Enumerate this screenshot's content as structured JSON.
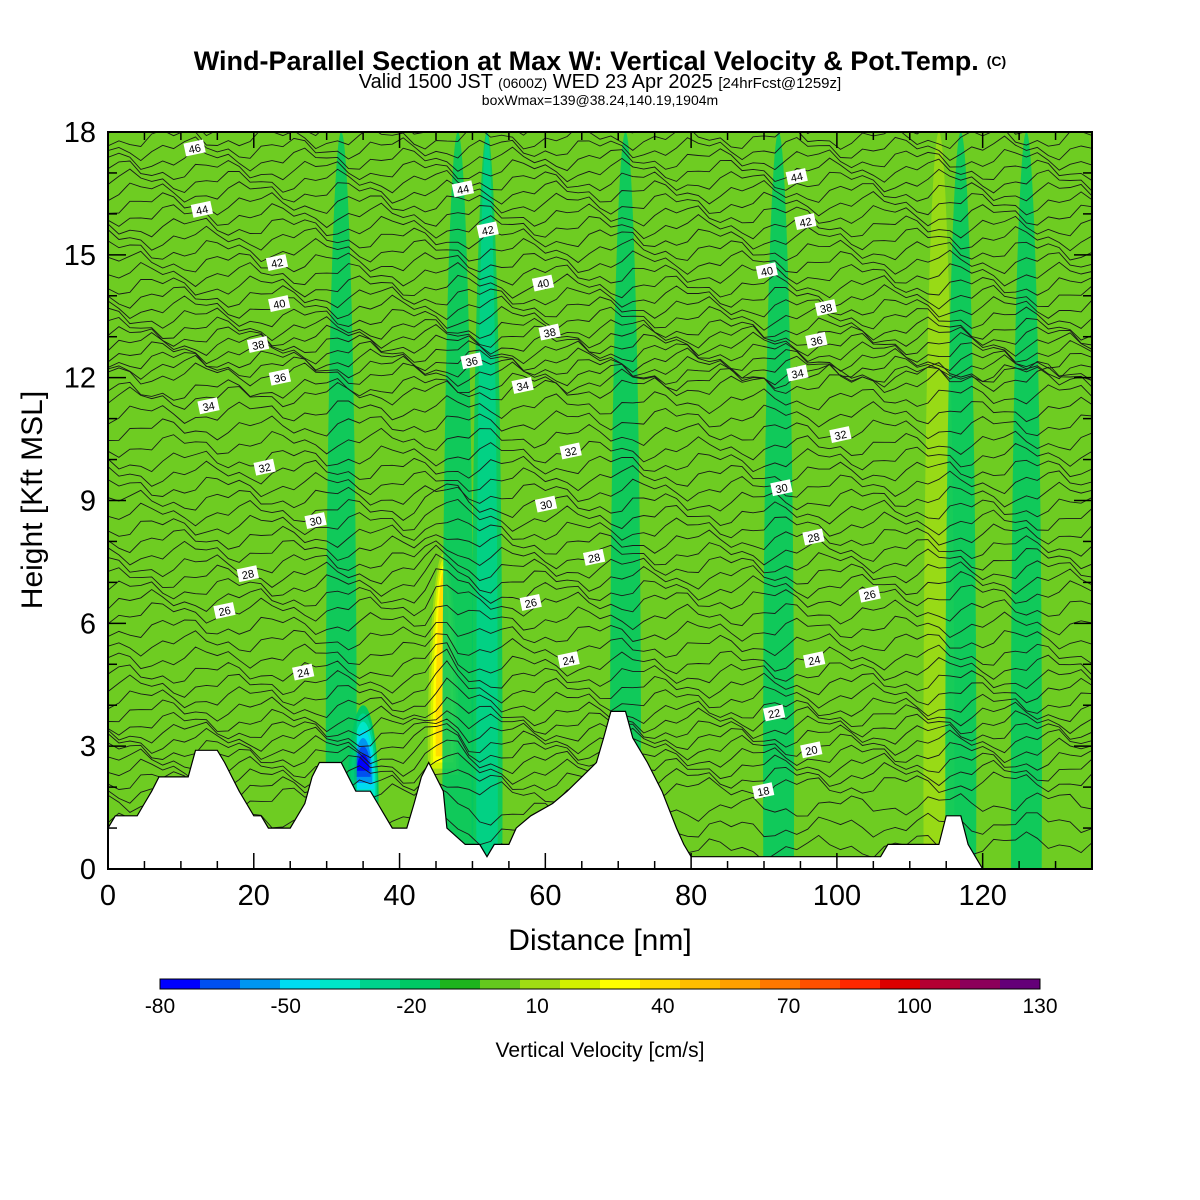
{
  "chart_data": {
    "type": "heatmap",
    "title": "Wind-Parallel Section at Max W: Vertical Velocity & Pot.Temp.",
    "title_mark": "(C)",
    "subtitle_pre": "Valid 1500 JST ",
    "subtitle_utc": "(0600Z)",
    "subtitle_date": " WED 23 Apr 2025 ",
    "subtitle_run": "[24hrFcst@1259z]",
    "subtitle2": "boxWmax=139@38.24,140.19,1904m",
    "xlabel": "Distance [nm]",
    "ylabel": "Height [Kft MSL]",
    "xlim": [
      0,
      135
    ],
    "ylim": [
      0,
      18
    ],
    "x_ticks": [
      "0",
      "20",
      "40",
      "60",
      "80",
      "100",
      "120"
    ],
    "y_ticks": [
      "0",
      "3",
      "6",
      "9",
      "12",
      "15",
      "18"
    ],
    "colorbar": {
      "label": "Vertical Velocity [cm/s]",
      "tick_labels": [
        "-80",
        "-50",
        "-20",
        "10",
        "40",
        "70",
        "100",
        "130"
      ],
      "colors": [
        "#0000ff",
        "#0050f0",
        "#0096f0",
        "#00dcf0",
        "#00e6c8",
        "#00d28c",
        "#00c864",
        "#1eb41e",
        "#64c81e",
        "#a0dc14",
        "#d2f000",
        "#ffff00",
        "#ffdc00",
        "#ffbe00",
        "#ffa000",
        "#ff7800",
        "#ff5000",
        "#ff2800",
        "#dc0000",
        "#b40032",
        "#8c005a",
        "#640078"
      ]
    },
    "updraft_columns": [
      {
        "x": 6,
        "w": 5
      },
      {
        "x": 14,
        "w": 4
      },
      {
        "x": 26,
        "w": 3
      },
      {
        "x": 41,
        "w": 6
      },
      {
        "x": 46,
        "w": 40
      },
      {
        "x": 50,
        "w": 5
      },
      {
        "x": 57,
        "w": 4
      },
      {
        "x": 66,
        "w": 5
      },
      {
        "x": 73,
        "w": 6
      },
      {
        "x": 86,
        "w": 5
      },
      {
        "x": 98,
        "w": 4
      },
      {
        "x": 105,
        "w": 5
      },
      {
        "x": 114,
        "w": 12
      },
      {
        "x": 123,
        "w": 6
      },
      {
        "x": 128,
        "w": 8
      },
      {
        "x": 133,
        "w": 4
      }
    ],
    "downdraft_columns": [
      {
        "x": 35,
        "w": -70
      },
      {
        "x": 52,
        "w": -22
      },
      {
        "x": 48,
        "w": -12
      },
      {
        "x": 71,
        "w": -15
      },
      {
        "x": 32,
        "w": -15
      },
      {
        "x": 92,
        "w": -10
      },
      {
        "x": 117,
        "w": -15
      },
      {
        "x": 126,
        "w": -12
      }
    ],
    "theta_contour_labels": [
      {
        "v": "46",
        "x": 11.9,
        "y": 17.6
      },
      {
        "v": "44",
        "x": 12.9,
        "y": 16.1
      },
      {
        "v": "44",
        "x": 48.7,
        "y": 16.6
      },
      {
        "v": "44",
        "x": 94.5,
        "y": 16.9
      },
      {
        "v": "42",
        "x": 23.2,
        "y": 14.8
      },
      {
        "v": "42",
        "x": 52.1,
        "y": 15.6
      },
      {
        "v": "42",
        "x": 95.7,
        "y": 15.8
      },
      {
        "v": "40",
        "x": 23.5,
        "y": 13.8
      },
      {
        "v": "40",
        "x": 59.7,
        "y": 14.3
      },
      {
        "v": "40",
        "x": 90.4,
        "y": 14.6
      },
      {
        "v": "38",
        "x": 20.6,
        "y": 12.8
      },
      {
        "v": "38",
        "x": 60.6,
        "y": 13.1
      },
      {
        "v": "38",
        "x": 98.5,
        "y": 13.7
      },
      {
        "v": "36",
        "x": 23.6,
        "y": 12.0
      },
      {
        "v": "36",
        "x": 49.9,
        "y": 12.4
      },
      {
        "v": "36",
        "x": 97.2,
        "y": 12.9
      },
      {
        "v": "34",
        "x": 13.8,
        "y": 11.3
      },
      {
        "v": "34",
        "x": 56.9,
        "y": 11.8
      },
      {
        "v": "34",
        "x": 94.6,
        "y": 12.1
      },
      {
        "v": "32",
        "x": 21.5,
        "y": 9.8
      },
      {
        "v": "32",
        "x": 63.5,
        "y": 10.2
      },
      {
        "v": "32",
        "x": 100.5,
        "y": 10.6
      },
      {
        "v": "30",
        "x": 28.5,
        "y": 8.5
      },
      {
        "v": "30",
        "x": 60.1,
        "y": 8.9
      },
      {
        "v": "30",
        "x": 92.4,
        "y": 9.3
      },
      {
        "v": "28",
        "x": 19.2,
        "y": 7.2
      },
      {
        "v": "28",
        "x": 66.7,
        "y": 7.6
      },
      {
        "v": "28",
        "x": 96.8,
        "y": 8.1
      },
      {
        "v": "26",
        "x": 16.0,
        "y": 6.3
      },
      {
        "v": "26",
        "x": 58.0,
        "y": 6.5
      },
      {
        "v": "26",
        "x": 104.5,
        "y": 6.7
      },
      {
        "v": "24",
        "x": 26.8,
        "y": 4.8
      },
      {
        "v": "24",
        "x": 63.2,
        "y": 5.1
      },
      {
        "v": "24",
        "x": 96.9,
        "y": 5.1
      },
      {
        "v": "22",
        "x": 91.4,
        "y": 3.8
      },
      {
        "v": "20",
        "x": 96.5,
        "y": 2.9
      },
      {
        "v": "18",
        "x": 89.9,
        "y": 1.9
      }
    ],
    "terrain": [
      [
        0,
        1.0
      ],
      [
        1,
        1.3
      ],
      [
        4,
        1.3
      ],
      [
        5,
        1.6
      ],
      [
        6,
        1.9
      ],
      [
        7,
        2.25
      ],
      [
        11,
        2.25
      ],
      [
        12,
        2.9
      ],
      [
        15,
        2.9
      ],
      [
        16,
        2.6
      ],
      [
        17,
        2.25
      ],
      [
        18,
        1.9
      ],
      [
        19,
        1.6
      ],
      [
        20,
        1.3
      ],
      [
        21,
        1.3
      ],
      [
        22,
        1.0
      ],
      [
        25,
        1.0
      ],
      [
        26,
        1.3
      ],
      [
        27,
        1.6
      ],
      [
        28,
        2.25
      ],
      [
        29,
        2.6
      ],
      [
        32,
        2.6
      ],
      [
        33,
        2.25
      ],
      [
        34,
        1.9
      ],
      [
        36,
        1.9
      ],
      [
        37,
        1.6
      ],
      [
        38,
        1.3
      ],
      [
        39,
        1.0
      ],
      [
        41,
        1.0
      ],
      [
        42,
        1.6
      ],
      [
        43,
        2.25
      ],
      [
        44,
        2.6
      ],
      [
        45,
        2.25
      ],
      [
        46,
        1.9
      ],
      [
        46.5,
        1.0
      ],
      [
        49,
        0.6
      ],
      [
        51,
        0.6
      ],
      [
        52,
        0.3
      ],
      [
        53,
        0.6
      ],
      [
        55,
        0.6
      ],
      [
        56,
        1.0
      ],
      [
        58,
        1.3
      ],
      [
        61,
        1.6
      ],
      [
        63,
        1.9
      ],
      [
        65,
        2.25
      ],
      [
        67,
        2.6
      ],
      [
        68,
        3.2
      ],
      [
        69,
        3.85
      ],
      [
        71,
        3.85
      ],
      [
        72,
        3.2
      ],
      [
        74,
        2.6
      ],
      [
        76,
        1.9
      ],
      [
        78,
        1.0
      ],
      [
        79,
        0.6
      ],
      [
        80,
        0.3
      ],
      [
        106,
        0.3
      ],
      [
        107,
        0.6
      ],
      [
        114,
        0.6
      ],
      [
        115,
        1.3
      ],
      [
        117,
        1.3
      ],
      [
        118,
        0.6
      ],
      [
        119,
        0.3
      ],
      [
        120,
        0.0
      ],
      [
        135,
        0.0
      ],
      [
        135,
        0.0
      ]
    ],
    "grid": false
  }
}
